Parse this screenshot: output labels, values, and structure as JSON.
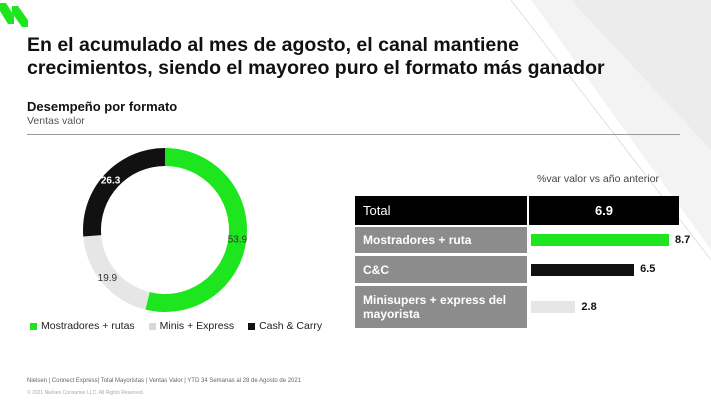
{
  "headline": {
    "line1": "En el acumulado al mes de agosto, el canal mantiene",
    "line2": "crecimientos, siendo el  mayoreo puro el formato más ganador"
  },
  "section": {
    "title": "Desempeño por formato",
    "subtitle": "Ventas valor"
  },
  "chart_data": [
    {
      "type": "pie",
      "categories": [
        "Mostradores + rutas",
        "Minis + Express",
        "Cash & Carry"
      ],
      "values": [
        53.9,
        19.9,
        26.3
      ],
      "colors": [
        "#1ee61e",
        "#e6e6e6",
        "#111111"
      ],
      "legend_position": "bottom"
    },
    {
      "type": "bar",
      "header": "%var valor vs año anterior",
      "total": {
        "label": "Total",
        "value": "6.9"
      },
      "categories": [
        "Mostradores + ruta",
        "C&C",
        "Minisupers + express del mayorista"
      ],
      "values": [
        8.7,
        6.5,
        2.8
      ],
      "colors": [
        "#1ee61e",
        "#111111",
        "#e6e6e6"
      ]
    }
  ],
  "footer": {
    "source": "Nielsen | Connect Express| Total Mayoristas | Ventas Valor | YTD 34 Semanas al 28 de Agosto de 2021",
    "copyright": "© 2021 Nielsen Consumer LLC. All Rights Reserved."
  }
}
